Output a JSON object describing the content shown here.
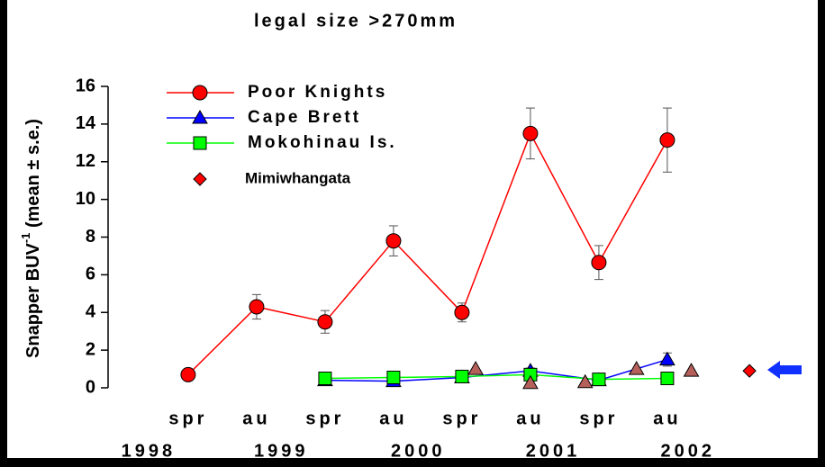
{
  "chart_data": {
    "type": "line",
    "title": "legal size >270mm",
    "ylabel": {
      "text": "Snapper  BUV",
      "sup": "-1",
      "rest": " (mean ± s.e.)"
    },
    "ylim": [
      0,
      16
    ],
    "yticks": [
      0,
      2,
      4,
      6,
      8,
      10,
      12,
      14,
      16
    ],
    "xlim": [
      -1.17,
      8.83
    ],
    "xticks": [
      {
        "value": 0,
        "label": "spr"
      },
      {
        "value": 1,
        "label": "au"
      },
      {
        "value": 2,
        "label": "spr"
      },
      {
        "value": 3,
        "label": "au"
      },
      {
        "value": 4,
        "label": "spr"
      },
      {
        "value": 5,
        "label": "au"
      },
      {
        "value": 6,
        "label": "spr"
      },
      {
        "value": 7,
        "label": "au"
      }
    ],
    "year_labels": [
      {
        "value": -0.58,
        "label": "1998"
      },
      {
        "value": 1.36,
        "label": "1999"
      },
      {
        "value": 3.36,
        "label": "2000"
      },
      {
        "value": 5.33,
        "label": "2001"
      },
      {
        "value": 7.3,
        "label": "2002"
      }
    ],
    "series": [
      {
        "name": "Poor Knights",
        "color": "#ff0000",
        "marker": "circle",
        "line": true,
        "x": [
          0,
          1,
          2,
          3,
          4,
          5,
          6,
          7
        ],
        "values": [
          0.7,
          4.3,
          3.5,
          7.8,
          4.0,
          13.5,
          6.65,
          13.15
        ],
        "errors": [
          0.1,
          0.65,
          0.6,
          0.8,
          0.5,
          1.35,
          0.9,
          1.7
        ]
      },
      {
        "name": "Cape Brett",
        "color": "#0000ff",
        "marker": "triangle",
        "line": true,
        "x": [
          2,
          3,
          4,
          5,
          6,
          7
        ],
        "values": [
          0.4,
          0.35,
          0.55,
          0.9,
          0.4,
          1.5
        ],
        "errors": [
          0.05,
          0.05,
          0.1,
          0.15,
          0.05,
          0.35
        ]
      },
      {
        "name": "Mokohinau Is.",
        "color": "#00ff00",
        "marker": "square",
        "line": true,
        "x": [
          2,
          3,
          4,
          5,
          6,
          7
        ],
        "values": [
          0.5,
          0.55,
          0.6,
          0.7,
          0.45,
          0.5
        ]
      },
      {
        "color": "#b5605a",
        "marker": "triangle",
        "line": false,
        "x": [
          4.2,
          5.0,
          5.8,
          6.55,
          7.35
        ],
        "values": [
          1.0,
          0.25,
          0.3,
          1.0,
          0.9
        ]
      },
      {
        "name": "Mimiwhangata",
        "color": "#ff0000",
        "marker": "diamond",
        "line": false,
        "x": [
          8.2
        ],
        "values": [
          0.9
        ]
      }
    ]
  }
}
